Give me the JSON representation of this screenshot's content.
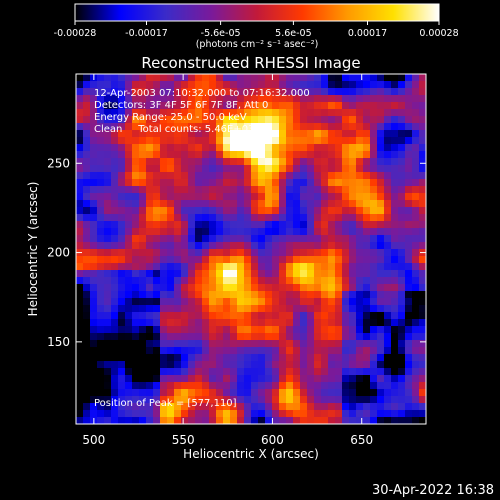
{
  "chart_data": {
    "type": "heatmap",
    "title": "Reconstructed RHESSI Image",
    "xlabel": "Heliocentric X (arcsec)",
    "ylabel": "Heliocentric Y (arcsec)",
    "xlim": [
      490,
      686
    ],
    "ylim": [
      104,
      300
    ],
    "xticks": [
      "500",
      "550",
      "600",
      "650"
    ],
    "yticks": [
      "150",
      "200",
      "250"
    ],
    "colorbar": {
      "unit_label": "(photons cm⁻² s⁻¹ asec⁻²)",
      "tick_labels": [
        "-0.00028",
        "-0.00017",
        "-5.6e-05",
        "5.6e-05",
        "0.00017",
        "0.00028"
      ],
      "range": [
        -0.00028,
        0.00028
      ],
      "colormap": [
        "#000000",
        "#0000ff",
        "#3b2bc8",
        "#7a1a9a",
        "#c21a3a",
        "#ff3a00",
        "#ff9a00",
        "#ffe000",
        "#ffffff"
      ]
    },
    "annotations": [
      "12-Apr-2003 07:10:32.000 to 07:16:32.000",
      "Detectors: 3F 4F 5F 6F 7F 8F, Att 0",
      "Energy Range: 25.0 - 50.0 keV",
      "Clean     Total counts: 5.46E+03"
    ],
    "peak_label": "Position of Peak = [577,110]",
    "peak": [
      577,
      110
    ],
    "grid": false
  },
  "timestamp": "30-Apr-2022 16:38"
}
